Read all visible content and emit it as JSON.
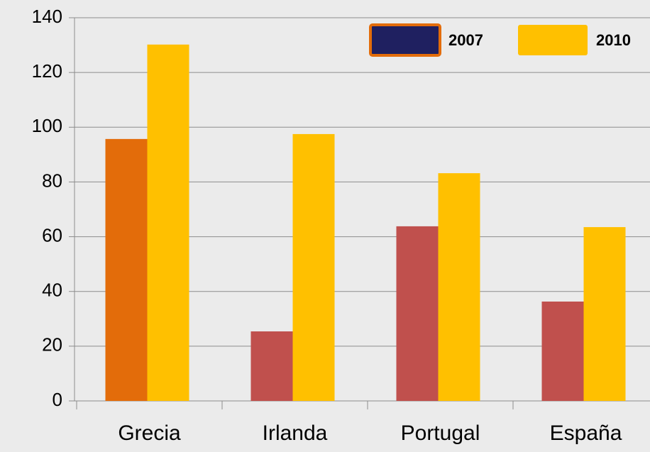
{
  "chart_data": {
    "type": "bar",
    "categories": [
      "Grecia",
      "Irlanda",
      "Portugal",
      "España"
    ],
    "series": [
      {
        "name": "2007",
        "color": "#c0504d",
        "colors": [
          "#e36c0a",
          "#c0504d",
          "#c0504d",
          "#c0504d"
        ],
        "legend_color": "#1f2060",
        "legend_border": "#e36c0a",
        "values": [
          95.7,
          25.4,
          63.8,
          36.3
        ]
      },
      {
        "name": "2010",
        "color": "#ffc000",
        "values": [
          130.2,
          97.5,
          83.2,
          63.5
        ]
      }
    ],
    "ylim": [
      0,
      140
    ],
    "yticks": [
      0,
      20,
      40,
      60,
      80,
      100,
      120,
      140
    ],
    "grid": true,
    "legend": "top-right"
  }
}
